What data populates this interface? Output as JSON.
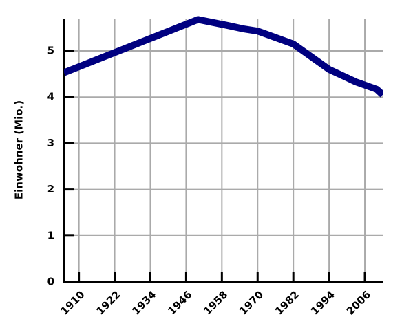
{
  "chart_data": {
    "type": "line",
    "y_label": "Einwohner (Mio.)",
    "x": [
      1905,
      1950,
      1960,
      1965,
      1970,
      1982,
      1994,
      2000,
      2003,
      2010,
      2012
    ],
    "series": [
      {
        "color": "#000080",
        "values": [
          4.53,
          5.68,
          5.55,
          5.48,
          5.43,
          5.15,
          4.6,
          4.42,
          4.33,
          4.17,
          4.05
        ]
      }
    ],
    "xlim": [
      1905,
      2012
    ],
    "xticks": [
      1910,
      1922,
      1934,
      1946,
      1958,
      1970,
      1982,
      1994,
      2006
    ],
    "ylim": [
      0,
      5.7
    ],
    "yticks": [
      0,
      1,
      2,
      3,
      4,
      5
    ],
    "grid": true
  }
}
